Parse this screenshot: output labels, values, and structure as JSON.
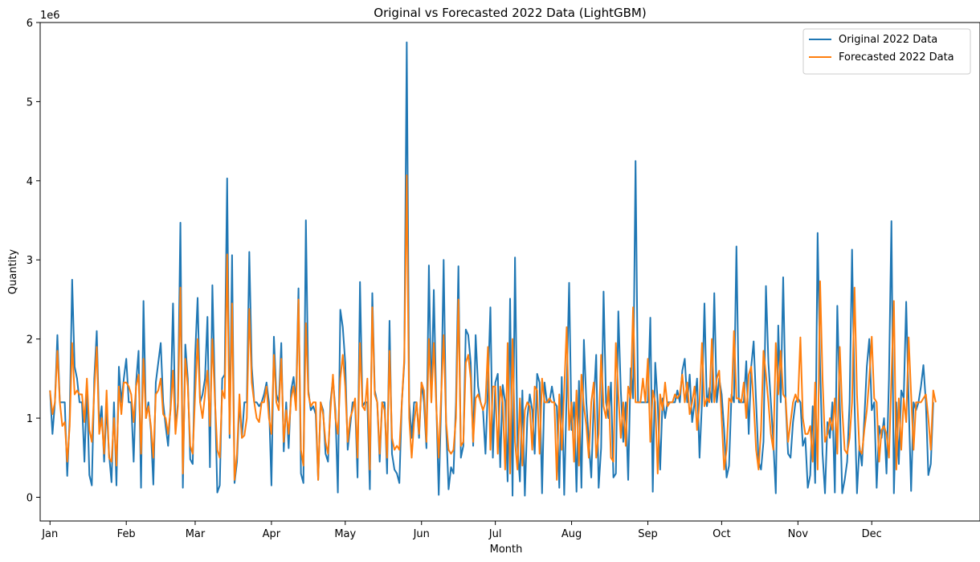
{
  "chart_data": {
    "type": "line",
    "title": "Original vs Forecasted 2022 Data (LightGBM)",
    "xlabel": "Month",
    "ylabel": "Quantity",
    "y_offset_label": "1e6",
    "x_ticks": [
      "Jan",
      "Feb",
      "Mar",
      "Apr",
      "May",
      "Jun",
      "Jul",
      "Aug",
      "Sep",
      "Oct",
      "Nov",
      "Dec"
    ],
    "y_ticks": [
      0,
      1,
      2,
      3,
      4,
      5,
      6
    ],
    "xlim": [
      -4,
      378
    ],
    "ylim": [
      -0.3,
      6.0
    ],
    "y_scale_note": "values in units of 1e6",
    "legend_position": "top-right",
    "grid": false,
    "series": [
      {
        "name": "Original 2022 Data",
        "color": "#1f77b4",
        "values": [
          1.35,
          0.8,
          1.2,
          2.05,
          1.2,
          1.2,
          1.2,
          0.27,
          1.0,
          2.75,
          1.65,
          1.5,
          1.2,
          1.2,
          0.45,
          1.4,
          0.28,
          0.15,
          1.5,
          2.1,
          0.9,
          1.15,
          0.45,
          1.15,
          0.55,
          0.19,
          1.2,
          0.15,
          1.65,
          1.2,
          1.5,
          1.75,
          1.2,
          1.2,
          0.45,
          1.45,
          1.85,
          0.12,
          2.48,
          1.0,
          1.2,
          0.85,
          0.16,
          1.45,
          1.7,
          1.95,
          1.2,
          0.9,
          0.65,
          1.15,
          2.45,
          0.85,
          1.2,
          3.47,
          0.12,
          1.93,
          1.5,
          0.48,
          0.42,
          1.8,
          2.52,
          1.2,
          1.3,
          1.5,
          2.28,
          0.38,
          2.68,
          1.35,
          0.06,
          0.15,
          1.5,
          1.55,
          4.03,
          0.75,
          3.06,
          0.18,
          0.45,
          1.2,
          0.75,
          1.2,
          1.2,
          3.1,
          1.65,
          1.2,
          1.2,
          1.15,
          1.2,
          1.3,
          1.45,
          1.2,
          0.15,
          2.03,
          1.3,
          1.2,
          1.95,
          0.58,
          1.2,
          0.62,
          1.35,
          1.52,
          1.2,
          2.64,
          0.3,
          0.18,
          3.5,
          1.35,
          1.1,
          1.15,
          1.05,
          0.22,
          1.2,
          1.1,
          0.55,
          0.45,
          1.2,
          1.5,
          1.1,
          0.06,
          2.37,
          2.15,
          1.7,
          0.6,
          0.9,
          1.2,
          1.2,
          0.25,
          2.72,
          1.15,
          1.2,
          1.2,
          0.1,
          2.58,
          1.35,
          1.2,
          0.45,
          1.2,
          1.2,
          0.3,
          2.23,
          0.55,
          0.35,
          0.3,
          0.18,
          1.2,
          1.7,
          5.75,
          1.2,
          0.75,
          1.2,
          1.2,
          0.75,
          1.45,
          1.2,
          0.62,
          2.93,
          1.2,
          2.62,
          1.2,
          0.03,
          1.2,
          3.0,
          0.9,
          0.1,
          0.38,
          0.3,
          1.2,
          2.92,
          0.5,
          0.65,
          2.12,
          2.05,
          1.7,
          0.65,
          2.05,
          1.4,
          1.2,
          1.1,
          0.55,
          1.4,
          2.4,
          0.5,
          1.45,
          1.56,
          0.38,
          1.42,
          1.2,
          0.2,
          2.51,
          0.02,
          3.03,
          0.65,
          0.2,
          1.35,
          0.02,
          1.0,
          1.3,
          1.1,
          0.55,
          1.56,
          1.45,
          0.05,
          1.45,
          1.2,
          1.2,
          1.4,
          1.2,
          1.15,
          0.12,
          1.52,
          0.03,
          1.35,
          2.71,
          0.85,
          1.2,
          0.07,
          1.47,
          0.12,
          1.99,
          1.2,
          0.7,
          0.25,
          1.2,
          1.8,
          0.12,
          0.62,
          2.6,
          1.2,
          1.0,
          1.45,
          0.25,
          0.3,
          2.35,
          1.35,
          0.7,
          1.2,
          0.22,
          1.63,
          1.25,
          4.25,
          1.2,
          1.2,
          1.2,
          1.2,
          1.2,
          2.27,
          0.07,
          1.7,
          1.2,
          0.35,
          1.25,
          1.0,
          1.2,
          1.2,
          1.2,
          1.2,
          1.35,
          1.2,
          1.6,
          1.75,
          1.2,
          1.55,
          0.95,
          1.2,
          1.5,
          0.5,
          1.2,
          2.45,
          1.15,
          1.38,
          1.2,
          2.58,
          1.2,
          1.5,
          1.3,
          0.85,
          0.25,
          0.4,
          1.3,
          1.2,
          3.17,
          1.2,
          1.2,
          1.2,
          1.72,
          0.8,
          1.65,
          1.97,
          1.2,
          0.45,
          0.35,
          0.7,
          2.67,
          1.7,
          1.2,
          0.7,
          0.05,
          2.17,
          1.2,
          2.78,
          1.2,
          0.55,
          0.5,
          0.95,
          1.2,
          1.25,
          1.2,
          0.65,
          0.75,
          0.12,
          0.28,
          1.15,
          0.18,
          3.34,
          1.65,
          0.55,
          0.05,
          0.95,
          0.75,
          1.2,
          0.06,
          2.42,
          1.2,
          0.05,
          0.22,
          0.45,
          1.2,
          3.13,
          1.2,
          0.05,
          0.65,
          0.4,
          1.0,
          1.65,
          2.0,
          1.1,
          1.2,
          0.12,
          0.9,
          0.75,
          1.0,
          0.3,
          1.5,
          3.49,
          0.05,
          1.2,
          0.42,
          1.35,
          1.25,
          2.47,
          1.2,
          0.08,
          1.2,
          1.1,
          1.2,
          1.4,
          1.67,
          1.2,
          0.28,
          0.42,
          1.2
        ]
      },
      {
        "name": "Forecasted 2022 Data",
        "color": "#ff7f0e",
        "values": [
          1.35,
          1.05,
          1.2,
          1.85,
          1.2,
          0.9,
          0.95,
          0.45,
          0.9,
          1.95,
          1.3,
          1.35,
          1.3,
          1.3,
          0.95,
          1.5,
          0.85,
          0.7,
          1.35,
          1.9,
          0.8,
          1.0,
          0.55,
          1.35,
          0.5,
          0.45,
          1.0,
          0.4,
          1.4,
          1.05,
          1.45,
          1.45,
          1.4,
          1.3,
          0.95,
          1.4,
          1.55,
          0.55,
          1.75,
          1.0,
          1.15,
          0.9,
          0.5,
          1.3,
          1.35,
          1.5,
          1.05,
          1.0,
          0.8,
          1.1,
          1.6,
          0.8,
          1.15,
          2.65,
          0.3,
          1.75,
          1.4,
          0.65,
          0.55,
          1.3,
          2.0,
          1.2,
          1.0,
          1.3,
          1.6,
          0.9,
          2.0,
          1.25,
          0.6,
          0.5,
          1.35,
          1.25,
          3.07,
          0.8,
          2.45,
          0.22,
          0.55,
          1.3,
          0.75,
          0.78,
          1.0,
          2.38,
          1.45,
          1.2,
          1.0,
          0.95,
          1.2,
          1.2,
          1.4,
          1.0,
          0.8,
          1.8,
          1.2,
          1.1,
          1.75,
          0.7,
          1.1,
          0.8,
          1.25,
          1.4,
          1.1,
          2.5,
          0.6,
          0.4,
          2.2,
          1.3,
          1.15,
          1.2,
          1.2,
          0.22,
          1.2,
          1.05,
          0.7,
          0.55,
          1.1,
          1.55,
          1.0,
          0.8,
          1.5,
          1.8,
          1.4,
          0.7,
          1.0,
          1.1,
          1.25,
          0.5,
          1.95,
          1.15,
          1.1,
          1.5,
          0.35,
          2.4,
          1.3,
          1.2,
          0.55,
          1.2,
          1.1,
          0.5,
          1.85,
          0.75,
          0.6,
          0.65,
          0.6,
          1.2,
          1.75,
          4.07,
          1.0,
          0.5,
          0.95,
          1.2,
          0.8,
          1.45,
          1.35,
          0.7,
          2.0,
          1.2,
          1.95,
          1.15,
          0.5,
          1.3,
          2.05,
          0.95,
          0.6,
          0.55,
          0.6,
          1.0,
          2.5,
          0.65,
          0.7,
          1.7,
          1.8,
          1.5,
          0.7,
          1.25,
          1.3,
          1.2,
          1.1,
          1.2,
          1.9,
          0.6,
          1.4,
          1.4,
          0.55,
          1.4,
          1.2,
          0.35,
          1.95,
          0.3,
          2.0,
          0.7,
          0.35,
          1.25,
          0.4,
          1.1,
          1.2,
          1.15,
          0.6,
          1.4,
          1.35,
          0.55,
          1.5,
          1.2,
          1.2,
          1.25,
          1.2,
          1.2,
          0.22,
          1.3,
          0.6,
          1.35,
          2.15,
          0.85,
          1.2,
          0.45,
          1.35,
          0.4,
          1.55,
          1.15,
          0.9,
          0.5,
          1.2,
          1.45,
          0.5,
          0.8,
          1.8,
          1.15,
          1.0,
          1.4,
          0.5,
          0.45,
          1.95,
          1.3,
          0.75,
          1.2,
          0.65,
          1.4,
          1.25,
          2.4,
          1.2,
          1.2,
          1.2,
          1.5,
          1.2,
          1.75,
          0.7,
          1.35,
          1.2,
          0.3,
          1.3,
          1.1,
          1.45,
          1.15,
          1.2,
          1.2,
          1.3,
          1.25,
          1.3,
          1.55,
          1.2,
          1.45,
          1.05,
          1.2,
          1.4,
          0.85,
          1.2,
          1.95,
          1.15,
          1.25,
          1.2,
          2.0,
          1.2,
          1.5,
          1.6,
          1.0,
          0.35,
          0.6,
          1.25,
          1.2,
          2.1,
          1.25,
          1.25,
          1.2,
          1.45,
          1.0,
          1.55,
          1.65,
          1.2,
          0.6,
          0.35,
          0.85,
          1.85,
          1.55,
          1.2,
          0.8,
          0.6,
          1.95,
          1.3,
          1.85,
          1.3,
          1.25,
          0.7,
          0.95,
          1.2,
          1.3,
          1.2,
          2.02,
          1.0,
          0.8,
          0.8,
          0.9,
          0.45,
          1.45,
          0.35,
          2.73,
          1.5,
          0.7,
          0.8,
          1.0,
          0.85,
          1.25,
          0.55,
          1.9,
          1.1,
          0.6,
          0.55,
          0.75,
          1.2,
          2.65,
          1.3,
          0.6,
          0.55,
          0.85,
          1.1,
          1.5,
          2.03,
          1.25,
          1.2,
          0.45,
          0.85,
          0.9,
          0.8,
          0.5,
          1.5,
          2.48,
          0.35,
          1.25,
          0.6,
          1.25,
          0.95,
          2.02,
          1.3,
          0.6,
          1.2,
          1.2,
          1.2,
          1.25,
          1.3,
          1.0,
          0.6,
          1.35,
          1.2
        ]
      }
    ]
  }
}
